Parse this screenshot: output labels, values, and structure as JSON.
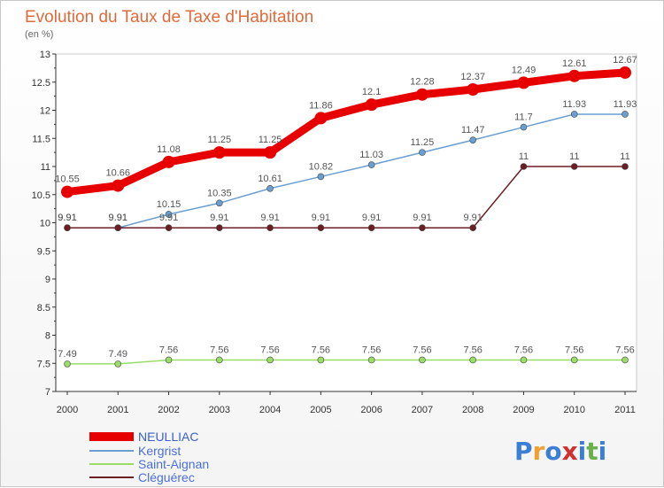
{
  "chart_data": {
    "type": "line",
    "title": "Evolution du Taux de Taxe d'Habitation",
    "subtitle": "(en %)",
    "x": [
      "2000",
      "2001",
      "2002",
      "2003",
      "2004",
      "2005",
      "2006",
      "2007",
      "2008",
      "2009",
      "2010",
      "2011"
    ],
    "ylim": [
      7,
      13
    ],
    "yticks": [
      "7",
      "7.5",
      "8",
      "8.5",
      "9",
      "9.5",
      "10",
      "10.5",
      "11",
      "11.5",
      "12",
      "12.5",
      "13"
    ],
    "series": [
      {
        "name": "NEULLIAC",
        "color": "#e60000",
        "values": [
          10.55,
          10.66,
          11.08,
          11.25,
          11.25,
          11.86,
          12.1,
          12.28,
          12.37,
          12.49,
          12.61,
          12.67
        ],
        "labels": [
          "10.55",
          "10.66",
          "11.08",
          "11.25",
          "11.25",
          "11.86",
          "12.1",
          "12.28",
          "12.37",
          "12.49",
          "12.61",
          "12.67"
        ]
      },
      {
        "name": "Kergrist",
        "color": "#6a9fd0",
        "values": [
          9.91,
          9.91,
          10.15,
          10.35,
          10.61,
          10.82,
          11.03,
          11.25,
          11.47,
          11.7,
          11.93,
          11.93
        ],
        "labels": [
          "9.91",
          "9.91",
          "10.15",
          "10.35",
          "10.61",
          "10.82",
          "11.03",
          "11.25",
          "11.47",
          "11.7",
          "11.93",
          "11.93"
        ]
      },
      {
        "name": "Saint-Aignan",
        "color": "#99dd66",
        "values": [
          7.49,
          7.49,
          7.56,
          7.56,
          7.56,
          7.56,
          7.56,
          7.56,
          7.56,
          7.56,
          7.56,
          7.56
        ],
        "labels": [
          "7.49",
          "7.49",
          "7.56",
          "7.56",
          "7.56",
          "7.56",
          "7.56",
          "7.56",
          "7.56",
          "7.56",
          "7.56",
          "7.56"
        ]
      },
      {
        "name": "Cléguérec",
        "color": "#6b1f24",
        "values": [
          9.91,
          9.91,
          9.91,
          9.91,
          9.91,
          9.91,
          9.91,
          9.91,
          9.91,
          11,
          11,
          11
        ],
        "labels": [
          "9.91",
          "9.91",
          "9.91",
          "9.91",
          "9.91",
          "9.91",
          "9.91",
          "9.91",
          "9.91",
          "11",
          "11",
          "11"
        ]
      }
    ]
  },
  "brand": {
    "text": "Proxiti",
    "letters": [
      "P",
      "r",
      "o",
      "x",
      "i",
      "t",
      "i"
    ],
    "colors": [
      "#3a7fd5",
      "#f0a030",
      "#3a7fd5",
      "#d03030",
      "#3a7fd5",
      "#6ab04c",
      "#3a7fd5"
    ]
  }
}
